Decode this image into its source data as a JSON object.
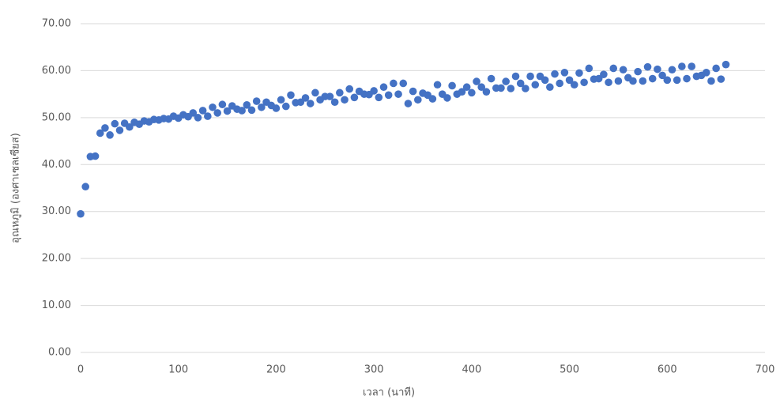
{
  "chart_data": {
    "type": "scatter",
    "x_label": "เวลา (นาที)",
    "y_label": "อุณหภูมิ (องศาเซลเซียส)",
    "color": "#4472c4",
    "grid": true,
    "xlim": [
      0,
      700
    ],
    "xticks": [
      0,
      100,
      200,
      300,
      400,
      500,
      600,
      700
    ],
    "ylim": [
      0,
      70
    ],
    "yticks": [
      {
        "value": 0,
        "label": "0.00"
      },
      {
        "value": 10,
        "label": "10.00"
      },
      {
        "value": 20,
        "label": "20.00"
      },
      {
        "value": 30,
        "label": "30.00"
      },
      {
        "value": 40,
        "label": "40.00"
      },
      {
        "value": 50,
        "label": "50.00"
      },
      {
        "value": 60,
        "label": "60.00"
      },
      {
        "value": 70,
        "label": "70.00"
      }
    ],
    "x": [
      0,
      5,
      10,
      15,
      20,
      25,
      30,
      35,
      40,
      45,
      50,
      55,
      60,
      65,
      70,
      75,
      80,
      85,
      90,
      95,
      100,
      105,
      110,
      115,
      120,
      125,
      130,
      135,
      140,
      145,
      150,
      155,
      160,
      165,
      170,
      175,
      180,
      185,
      190,
      195,
      200,
      205,
      210,
      215,
      220,
      225,
      230,
      235,
      240,
      245,
      250,
      255,
      260,
      265,
      270,
      275,
      280,
      285,
      290,
      295,
      300,
      305,
      310,
      315,
      320,
      325,
      330,
      335,
      340,
      345,
      350,
      355,
      360,
      365,
      370,
      375,
      380,
      385,
      390,
      395,
      400,
      405,
      410,
      415,
      420,
      425,
      430,
      435,
      440,
      445,
      450,
      455,
      460,
      465,
      470,
      475,
      480,
      485,
      490,
      495,
      500,
      505,
      510,
      515,
      520,
      525,
      530,
      535,
      540,
      545,
      550,
      555,
      560,
      565,
      570,
      575,
      580,
      585,
      590,
      595,
      600,
      605,
      610,
      615,
      620,
      625,
      630,
      635,
      640,
      645,
      650,
      655,
      660
    ],
    "values": [
      29.5,
      35.3,
      41.7,
      41.8,
      46.7,
      47.8,
      46.3,
      48.7,
      47.3,
      48.8,
      48.0,
      49.0,
      48.6,
      49.3,
      49.1,
      49.6,
      49.5,
      49.8,
      49.7,
      50.3,
      49.9,
      50.6,
      50.2,
      51.0,
      50.0,
      51.5,
      50.3,
      52.2,
      51.0,
      52.8,
      51.4,
      52.5,
      51.8,
      51.5,
      52.7,
      51.6,
      53.5,
      52.2,
      53.3,
      52.6,
      52.0,
      53.8,
      52.4,
      54.8,
      53.2,
      53.3,
      54.2,
      53.0,
      55.3,
      53.8,
      54.5,
      54.5,
      53.3,
      55.3,
      53.8,
      56.1,
      54.3,
      55.6,
      55.0,
      54.9,
      55.7,
      54.3,
      56.5,
      54.8,
      57.3,
      55.0,
      57.3,
      53.0,
      55.6,
      53.8,
      55.2,
      54.8,
      54.0,
      57.0,
      55.0,
      54.2,
      56.8,
      55.0,
      55.5,
      56.5,
      55.3,
      57.7,
      56.5,
      55.5,
      58.3,
      56.3,
      56.3,
      57.7,
      56.2,
      58.8,
      57.3,
      56.2,
      58.8,
      57.0,
      58.8,
      58.0,
      56.5,
      59.3,
      57.3,
      59.6,
      58.0,
      57.0,
      59.5,
      57.5,
      60.5,
      58.2,
      58.3,
      59.2,
      57.5,
      60.5,
      57.8,
      60.2,
      58.5,
      57.8,
      59.8,
      57.8,
      60.8,
      58.3,
      60.3,
      59.0,
      58.0,
      60.2,
      58.0,
      60.9,
      58.3,
      60.9,
      58.8,
      59.0,
      59.6,
      57.8,
      60.5,
      58.2,
      61.3
    ]
  }
}
